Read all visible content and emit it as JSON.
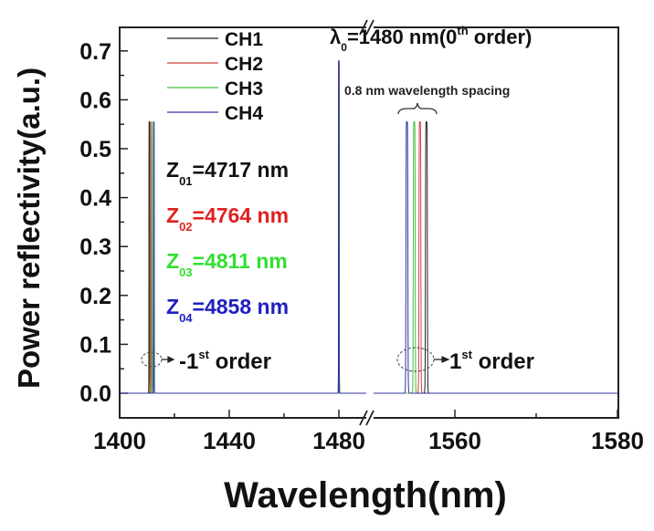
{
  "chart_data": {
    "type": "line",
    "xlabel": "Wavelength(nm)",
    "ylabel": "Power reflectivity(a.u.)",
    "xlim_segments": [
      [
        1400,
        1490
      ],
      [
        1550,
        1580
      ]
    ],
    "axis_break": "between 1490 and 1550",
    "ylim": [
      -0.05,
      0.75
    ],
    "x_ticks": [
      "1400",
      "1440",
      "1480",
      "1560",
      "1580"
    ],
    "x_tick_values": [
      1400,
      1440,
      1480,
      1560,
      1580
    ],
    "y_ticks": [
      "0.0",
      "0.1",
      "0.2",
      "0.3",
      "0.4",
      "0.5",
      "0.6",
      "0.7"
    ],
    "y_tick_values": [
      0,
      0.1,
      0.2,
      0.3,
      0.4,
      0.5,
      0.6,
      0.7
    ],
    "legend_placement": "top-left",
    "series": [
      {
        "name": "CH1",
        "color": "#222222",
        "peaks": [
          {
            "x": 1410.8,
            "y": 0.555
          },
          {
            "x": 1480,
            "y": 0.68
          },
          {
            "x": 1556.5,
            "y": 0.555
          }
        ]
      },
      {
        "name": "CH2",
        "color": "#d04040",
        "peaks": [
          {
            "x": 1411.2,
            "y": 0.555
          },
          {
            "x": 1480,
            "y": 0.68
          },
          {
            "x": 1555.7,
            "y": 0.555
          }
        ]
      },
      {
        "name": "CH3",
        "color": "#40c040",
        "peaks": [
          {
            "x": 1411.8,
            "y": 0.555
          },
          {
            "x": 1480,
            "y": 0.68
          },
          {
            "x": 1555.0,
            "y": 0.555
          }
        ]
      },
      {
        "name": "CH4",
        "color": "#3030a0",
        "peaks": [
          {
            "x": 1412.5,
            "y": 0.555
          },
          {
            "x": 1480,
            "y": 0.68
          },
          {
            "x": 1554.1,
            "y": 0.555
          }
        ]
      }
    ],
    "annotations": {
      "lambda_symbol": "λ",
      "lambda_sub": "0",
      "lambda_main": "=1480 nm(0",
      "lambda_sup": "th",
      "lambda_tail": " order)",
      "spacing": "0.8 nm wavelength spacing",
      "neg_order_pre": "-1",
      "neg_order_sup": "st",
      "neg_order_post": " order",
      "pos_order_pre": "1",
      "pos_order_sup": "st",
      "pos_order_post": " order",
      "z_labels": [
        {
          "z": "Z",
          "sub": "01",
          "value": "=4717 nm",
          "color": "#111111"
        },
        {
          "z": "Z",
          "sub": "02",
          "value": "=4764 nm",
          "color": "#e02020"
        },
        {
          "z": "Z",
          "sub": "03",
          "value": "=4811 nm",
          "color": "#30e030"
        },
        {
          "z": "Z",
          "sub": "04",
          "value": "=4858 nm",
          "color": "#2020c0"
        }
      ]
    }
  }
}
